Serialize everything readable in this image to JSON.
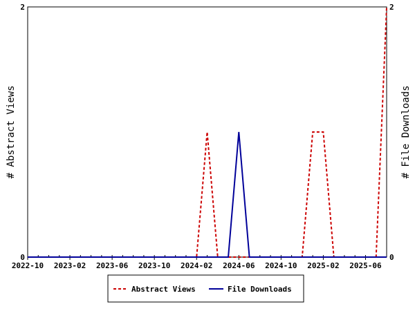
{
  "chart_data": {
    "type": "line",
    "title": "",
    "ylabel_left": "# Abstract Views",
    "ylabel_right": "# File Downloads",
    "ylim": [
      0,
      2
    ],
    "y_ticks_left": [
      "0",
      "2"
    ],
    "y_ticks_right": [
      "0",
      "2"
    ],
    "x": [
      "2022-10",
      "2022-11",
      "2022-12",
      "2023-01",
      "2023-02",
      "2023-03",
      "2023-04",
      "2023-05",
      "2023-06",
      "2023-07",
      "2023-08",
      "2023-09",
      "2023-10",
      "2023-11",
      "2023-12",
      "2024-01",
      "2024-02",
      "2024-03",
      "2024-04",
      "2024-05",
      "2024-06",
      "2024-07",
      "2024-08",
      "2024-09",
      "2024-10",
      "2024-11",
      "2024-12",
      "2025-01",
      "2025-02",
      "2025-03",
      "2025-04",
      "2025-05",
      "2025-06",
      "2025-07",
      "2025-08"
    ],
    "x_tick_labels": [
      "2022-10",
      "2023-02",
      "2023-06",
      "2023-10",
      "2024-02",
      "2024-06",
      "2024-10",
      "2025-02",
      "2025-06"
    ],
    "series": [
      {
        "name": "Abstract Views",
        "color": "#cc0000",
        "style": "dashed",
        "axis": "left",
        "values": [
          0,
          0,
          0,
          0,
          0,
          0,
          0,
          0,
          0,
          0,
          0,
          0,
          0,
          0,
          0,
          0,
          0,
          1,
          0,
          0,
          0,
          0,
          0,
          0,
          0,
          0,
          0,
          1,
          1,
          0,
          0,
          0,
          0,
          0,
          2
        ]
      },
      {
        "name": "File Downloads",
        "color": "#000099",
        "style": "solid",
        "axis": "right",
        "values": [
          0,
          0,
          0,
          0,
          0,
          0,
          0,
          0,
          0,
          0,
          0,
          0,
          0,
          0,
          0,
          0,
          0,
          0,
          0,
          0,
          1,
          0,
          0,
          0,
          0,
          0,
          0,
          0,
          0,
          0,
          0,
          0,
          0,
          0,
          0
        ]
      }
    ],
    "legend_position": "bottom-center",
    "grid": false
  }
}
